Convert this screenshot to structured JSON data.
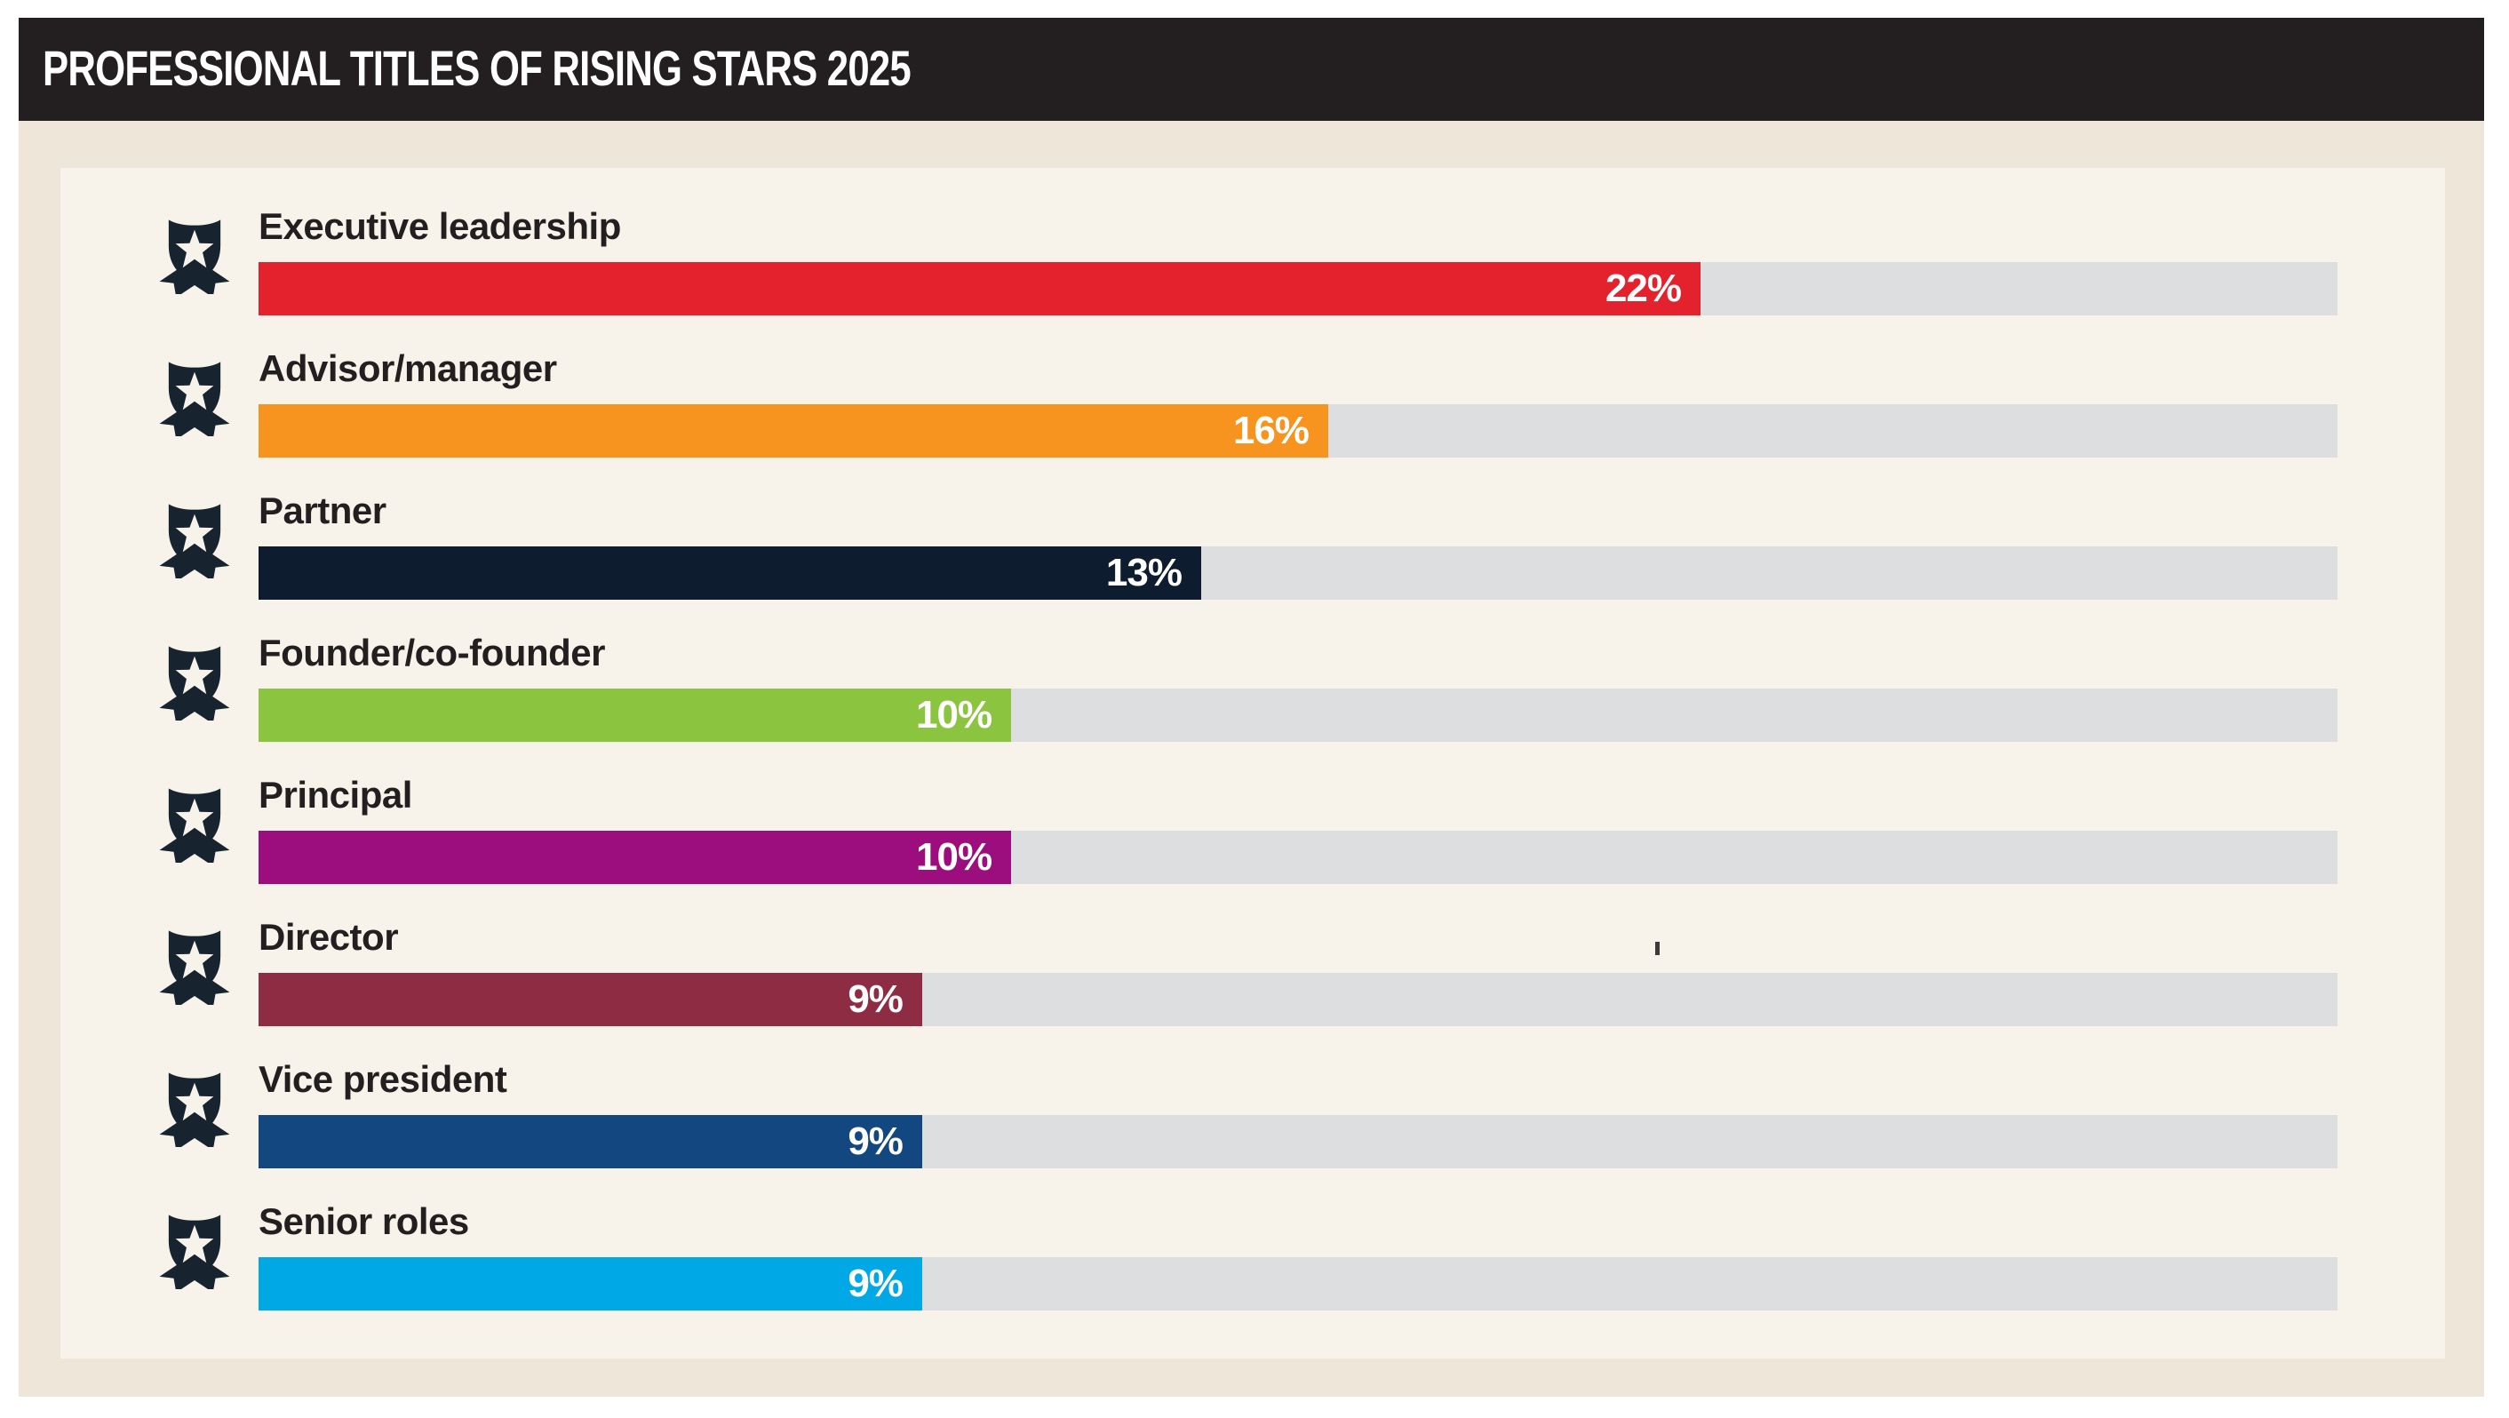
{
  "header": {
    "title": "PROFESSIONAL TITLES OF RISING STARS 2025"
  },
  "colors": {
    "page_bg": "#ffffff",
    "card_bg": "#eee7d9",
    "panel_bg": "#f7f3ea",
    "header_bg": "#231f20",
    "header_text": "#ffffff",
    "label_text": "#231f20",
    "track": "#dcdee0",
    "value_text": "#ffffff",
    "badge_icon": "#172430"
  },
  "chart_data": {
    "type": "bar",
    "orientation": "horizontal",
    "title": "Professional titles of Rising Stars 2025",
    "categories": [
      "Executive leadership",
      "Advisor/manager",
      "Partner",
      "Founder/co-founder",
      "Principal",
      "Director",
      "Vice president",
      "Senior roles"
    ],
    "values": [
      22,
      16,
      13,
      10,
      10,
      9,
      9,
      9
    ],
    "value_labels": [
      "22%",
      "16%",
      "13%",
      "10%",
      "10%",
      "9%",
      "9%",
      "9%"
    ],
    "bar_colors": [
      "#e4222e",
      "#f6941f",
      "#0e1c30",
      "#8bc540",
      "#9c0e7d",
      "#8e2c44",
      "#12477f",
      "#00a9e6"
    ],
    "bar_width_fracs": [
      0.6936,
      0.5145,
      0.4534,
      0.362,
      0.362,
      0.3192,
      0.3192,
      0.3192
    ],
    "xlim": [
      0,
      31.7
    ],
    "grid": false,
    "legend": "none",
    "value_label_position": "inside-end",
    "row_icon": "award-badge"
  }
}
